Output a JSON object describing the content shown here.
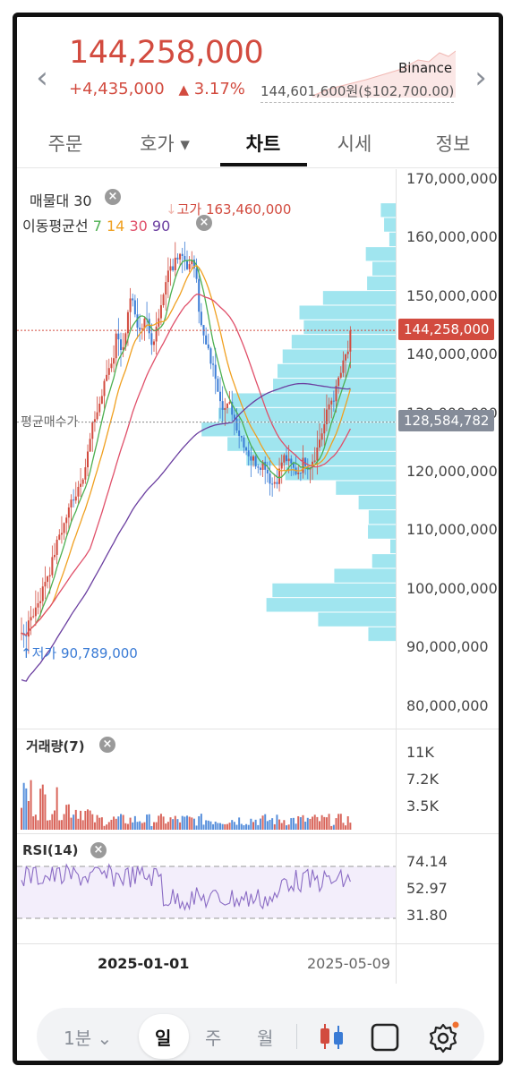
{
  "header": {
    "price": "144,258,000",
    "change_abs": "+4,435,000",
    "change_tri": "▲",
    "change_pct": "3.17%",
    "exchange": "Binance",
    "ref_price": "144,601,600원($102,700.00)"
  },
  "tabs": [
    {
      "label": "주문"
    },
    {
      "label": "호가 ▾"
    },
    {
      "label": "차트",
      "active": true
    },
    {
      "label": "시세"
    },
    {
      "label": "정보"
    }
  ],
  "indicators": {
    "volume_profile": "매물대 30",
    "ma_label": "이동평균선",
    "ma_values": [
      {
        "period": "7",
        "color": "#4caf50"
      },
      {
        "period": "14",
        "color": "#f0a020"
      },
      {
        "period": "30",
        "color": "#e0506a"
      },
      {
        "period": "90",
        "color": "#6b3fa0"
      }
    ],
    "high_label": "고가 163,460,000",
    "low_label": "저가 90,789,000",
    "avg_buy": "평균매수가"
  },
  "y_axis": [
    "170,000,000",
    "160,000,000",
    "150,000,000",
    "140,000,000",
    "130,000,000",
    "120,000,000",
    "110,000,000",
    "100,000,000",
    "90,000,000",
    "80,000,000"
  ],
  "tags": {
    "current": "144,258,000",
    "avg": "128,584,782"
  },
  "volume": {
    "label": "거래량(7)",
    "ticks": [
      "11K",
      "7.2K",
      "3.5K"
    ]
  },
  "rsi": {
    "label": "RSI(14)",
    "ticks": [
      "74.14",
      "52.97",
      "31.80"
    ]
  },
  "x_axis": [
    "2025-01-01",
    "2025-05-09"
  ],
  "bottombar": {
    "interval": "1분",
    "day": "일",
    "week": "주",
    "month": "월"
  },
  "colors": {
    "up": "#d24b3f",
    "down": "#3a7bd5",
    "profile": "#8fe0ec",
    "current_tag": "#d24b3f",
    "avg_tag": "#858c99"
  }
}
